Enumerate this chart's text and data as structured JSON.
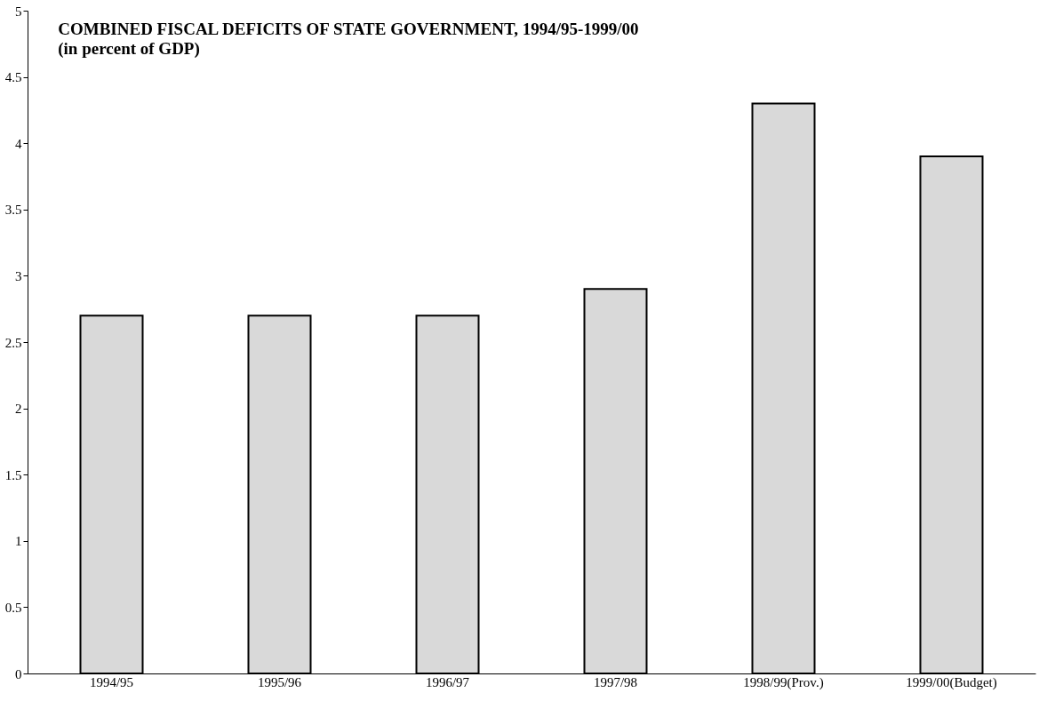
{
  "chart_data": {
    "type": "bar",
    "title": "COMBINED FISCAL DEFICITS OF STATE GOVERNMENT,  1994/95-1999/00",
    "subtitle": "(in percent of GDP)",
    "categories": [
      "1994/95",
      "1995/96",
      "1996/97",
      "1997/98",
      "1998/99(Prov.)",
      "1999/00(Budget)"
    ],
    "values": [
      2.7,
      2.7,
      2.7,
      2.9,
      4.3,
      3.9
    ],
    "color": "#d9d9d9",
    "ylim": [
      0,
      5
    ],
    "yticks": [
      0,
      0.5,
      1,
      1.5,
      2,
      2.5,
      3,
      3.5,
      4,
      4.5,
      5
    ],
    "grid": false
  }
}
